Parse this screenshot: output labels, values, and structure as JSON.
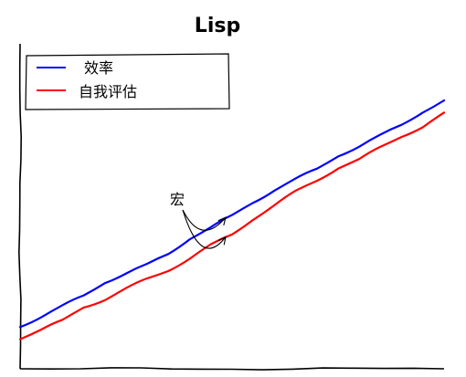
{
  "chart_data": {
    "type": "line",
    "title": "Lisp",
    "xlabel": "",
    "ylabel": "",
    "xlim": [
      0,
      10
    ],
    "ylim": [
      0,
      10
    ],
    "grid": false,
    "legend_position": "top-left",
    "x": [
      0,
      0.5,
      1,
      1.5,
      2,
      2.5,
      3,
      3.5,
      4,
      4.5,
      5,
      5.5,
      6,
      6.5,
      7,
      7.5,
      8,
      8.5,
      9,
      9.5,
      10
    ],
    "series": [
      {
        "name": "效率",
        "color": "#0000ff",
        "values": [
          1.0,
          1.4,
          1.9,
          2.3,
          2.8,
          3.2,
          3.6,
          4.0,
          4.6,
          5.1,
          5.6,
          6.1,
          6.6,
          7.1,
          7.5,
          8.0,
          8.4,
          8.9,
          9.3,
          9.8,
          10.3
        ]
      },
      {
        "name": "自我评估",
        "color": "#ff0000",
        "values": [
          0.5,
          0.9,
          1.3,
          1.8,
          2.1,
          2.6,
          3.0,
          3.3,
          3.8,
          4.4,
          4.8,
          5.4,
          6.0,
          6.6,
          7.0,
          7.5,
          7.9,
          8.4,
          8.8,
          9.2,
          9.8
        ]
      }
    ],
    "annotations": [
      {
        "text": "宏",
        "points_to": [
          {
            "x": 4.85,
            "y": 5.5
          },
          {
            "x": 4.85,
            "y": 4.7
          }
        ]
      }
    ]
  }
}
